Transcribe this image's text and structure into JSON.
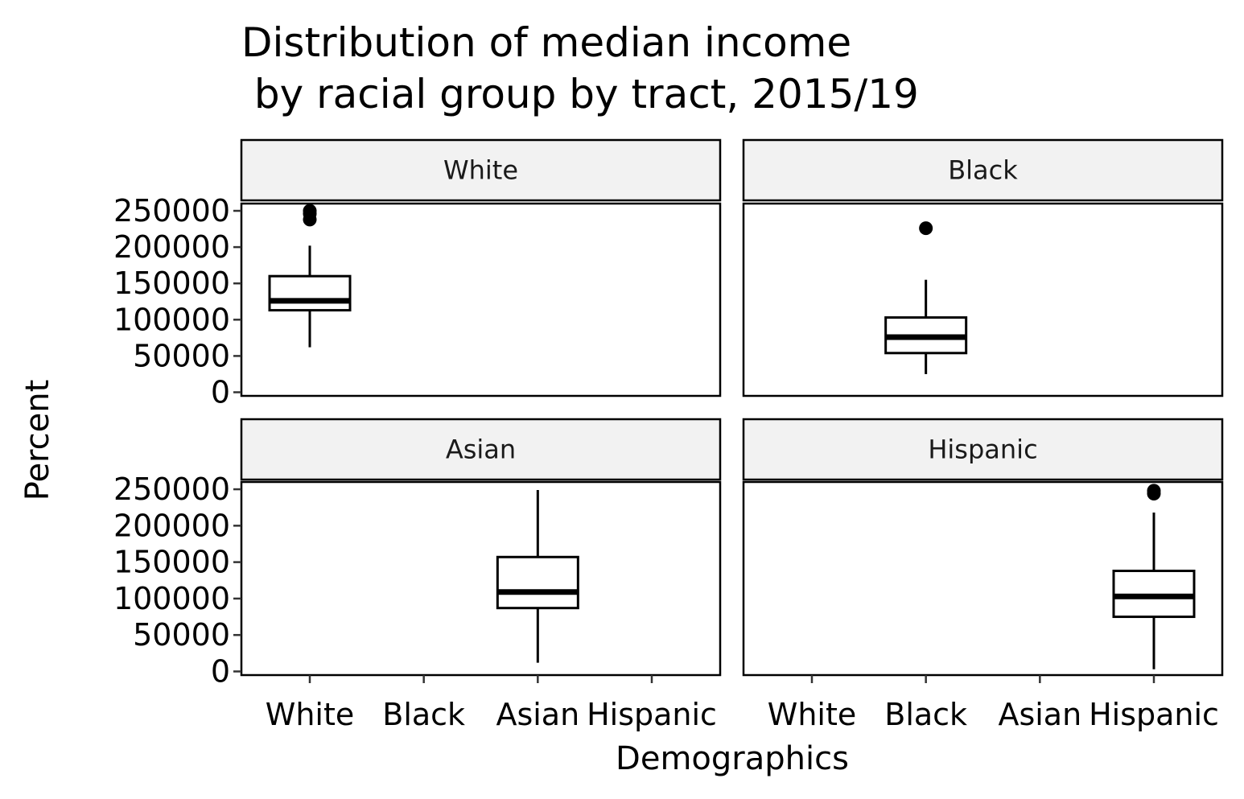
{
  "chart_data": {
    "type": "boxplot",
    "title": "Distribution of median income\n by racial group by tract, 2015/19",
    "xlabel": "Demographics",
    "ylabel": "Percent",
    "categories": [
      "White",
      "Black",
      "Asian",
      "Hispanic"
    ],
    "ylim": [
      -5000,
      260000
    ],
    "yticks": [
      0,
      50000,
      100000,
      150000,
      200000,
      250000
    ],
    "ytick_labels": [
      "0",
      "50000",
      "100000",
      "150000",
      "200000",
      "250000"
    ],
    "grid": false,
    "layout": "2x2 facets",
    "facet_fill": "#f2f2f2",
    "facets": [
      {
        "name": "White",
        "category": "White",
        "whisker_low": 62000,
        "q1": 113000,
        "median": 126000,
        "q3": 160000,
        "whisker_high": 202000,
        "outliers": [
          238000,
          246000,
          250000
        ]
      },
      {
        "name": "Black",
        "category": "Black",
        "whisker_low": 25000,
        "q1": 54000,
        "median": 76000,
        "q3": 103000,
        "whisker_high": 155000,
        "outliers": [
          226000
        ]
      },
      {
        "name": "Asian",
        "category": "Asian",
        "whisker_low": 12000,
        "q1": 87000,
        "median": 109000,
        "q3": 157000,
        "whisker_high": 249000,
        "outliers": []
      },
      {
        "name": "Hispanic",
        "category": "Hispanic",
        "whisker_low": 3000,
        "q1": 75000,
        "median": 103000,
        "q3": 138000,
        "whisker_high": 218000,
        "outliers": [
          244000,
          248000
        ]
      }
    ]
  }
}
